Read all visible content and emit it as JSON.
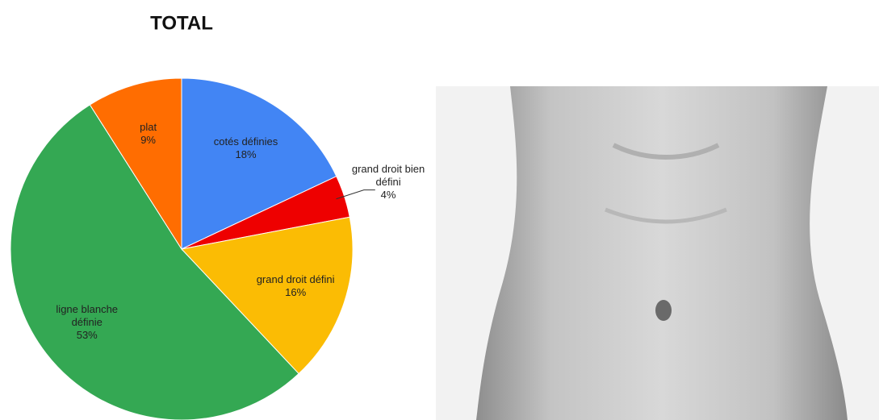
{
  "chart_data": {
    "type": "pie",
    "title": "TOTAL",
    "categories": [
      "cotés définies",
      "grand droit bien défini",
      "grand droit défini",
      "ligne blanche définie",
      "plat"
    ],
    "values": [
      18,
      4,
      16,
      53,
      9
    ],
    "value_labels": [
      "18%",
      "4%",
      "16%",
      "53%",
      "9%"
    ],
    "colors": [
      "#4285f4",
      "#ee0000",
      "#fbbc04",
      "#34a853",
      "#ff6d01"
    ]
  }
}
